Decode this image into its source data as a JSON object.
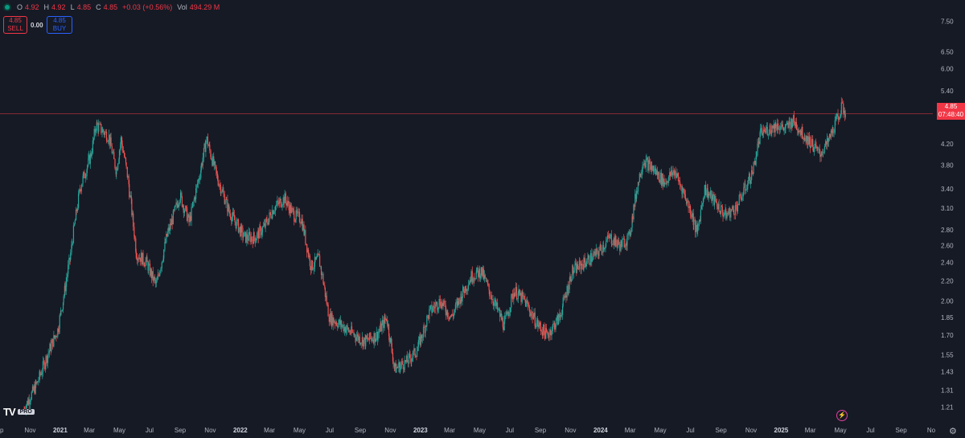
{
  "legend": {
    "open_label": "O",
    "open": "4.92",
    "high_label": "H",
    "high": "4.92",
    "low_label": "L",
    "low": "4.85",
    "close_label": "C",
    "close": "4.85",
    "change": "+0.03 (+0.56%)",
    "vol_label": "Vol",
    "volume": "494.29 M"
  },
  "trade": {
    "sell_price": "4.85",
    "sell_label": "SELL",
    "spread": "0.00",
    "buy_price": "4.85",
    "buy_label": "BUY"
  },
  "price_tag": {
    "price": "4.85",
    "countdown": "07:48:40"
  },
  "logo": {
    "badge": "PRO",
    "mark": "TV"
  },
  "colors": {
    "background": "#161a25",
    "up": "#26a69a",
    "down": "#ef5350",
    "last_price": "#f23645",
    "grid": "#1e222d"
  },
  "icons": [
    "status-dot-icon",
    "tradingview-logo-icon",
    "lightning-icon",
    "settings-gear-icon"
  ],
  "chart_data": {
    "type": "candlestick",
    "y_scale": "log",
    "ylim": [
      1.15,
      8.3
    ],
    "y_ticks": [
      "7.50",
      "6.50",
      "6.00",
      "5.40",
      "5.00",
      "4.20",
      "3.80",
      "3.40",
      "3.10",
      "2.80",
      "2.60",
      "2.40",
      "2.20",
      "2.00",
      "1.85",
      "1.70",
      "1.55",
      "1.43",
      "1.31",
      "1.21"
    ],
    "x_range": [
      "2020-09",
      "2025-11"
    ],
    "x_ticks": [
      {
        "label": "ep",
        "date": "2020-09"
      },
      {
        "label": "Nov",
        "date": "2020-11"
      },
      {
        "label": "2021",
        "date": "2021-01"
      },
      {
        "label": "Mar",
        "date": "2021-03"
      },
      {
        "label": "May",
        "date": "2021-05"
      },
      {
        "label": "Jul",
        "date": "2021-07"
      },
      {
        "label": "Sep",
        "date": "2021-09"
      },
      {
        "label": "Nov",
        "date": "2021-11"
      },
      {
        "label": "2022",
        "date": "2022-01"
      },
      {
        "label": "Mar",
        "date": "2022-03"
      },
      {
        "label": "May",
        "date": "2022-05"
      },
      {
        "label": "Jul",
        "date": "2022-07"
      },
      {
        "label": "Sep",
        "date": "2022-09"
      },
      {
        "label": "Nov",
        "date": "2022-11"
      },
      {
        "label": "2023",
        "date": "2023-01"
      },
      {
        "label": "Mar",
        "date": "2023-03"
      },
      {
        "label": "May",
        "date": "2023-05"
      },
      {
        "label": "Jul",
        "date": "2023-07"
      },
      {
        "label": "Sep",
        "date": "2023-09"
      },
      {
        "label": "Nov",
        "date": "2023-11"
      },
      {
        "label": "2024",
        "date": "2024-01"
      },
      {
        "label": "Mar",
        "date": "2024-03"
      },
      {
        "label": "May",
        "date": "2024-05"
      },
      {
        "label": "Jul",
        "date": "2024-07"
      },
      {
        "label": "Sep",
        "date": "2024-09"
      },
      {
        "label": "Nov",
        "date": "2024-11"
      },
      {
        "label": "2025",
        "date": "2025-01"
      },
      {
        "label": "Mar",
        "date": "2025-03"
      },
      {
        "label": "May",
        "date": "2025-05"
      },
      {
        "label": "Jul",
        "date": "2025-07"
      },
      {
        "label": "Sep",
        "date": "2025-09"
      },
      {
        "label": "No",
        "date": "2025-11"
      }
    ],
    "last_price": 4.85,
    "price_path": [
      [
        "2020-10-20",
        1.2
      ],
      [
        "2020-11-15",
        1.35
      ],
      [
        "2020-12-10",
        1.58
      ],
      [
        "2020-12-28",
        1.75
      ],
      [
        "2021-01-20",
        2.4
      ],
      [
        "2021-02-10",
        3.4
      ],
      [
        "2021-03-05",
        4.0
      ],
      [
        "2021-03-15",
        4.6
      ],
      [
        "2021-04-10",
        4.35
      ],
      [
        "2021-04-25",
        3.7
      ],
      [
        "2021-05-05",
        4.3
      ],
      [
        "2021-05-20",
        3.5
      ],
      [
        "2021-06-05",
        2.5
      ],
      [
        "2021-06-25",
        2.4
      ],
      [
        "2021-07-15",
        2.15
      ],
      [
        "2021-08-05",
        2.7
      ],
      [
        "2021-09-01",
        3.3
      ],
      [
        "2021-09-20",
        2.9
      ],
      [
        "2021-10-10",
        3.6
      ],
      [
        "2021-10-25",
        4.3
      ],
      [
        "2021-11-15",
        3.6
      ],
      [
        "2021-12-10",
        3.05
      ],
      [
        "2022-01-10",
        2.7
      ],
      [
        "2022-02-01",
        2.7
      ],
      [
        "2022-02-20",
        2.85
      ],
      [
        "2022-03-10",
        3.1
      ],
      [
        "2022-04-01",
        3.25
      ],
      [
        "2022-04-20",
        3.0
      ],
      [
        "2022-05-05",
        2.95
      ],
      [
        "2022-05-25",
        2.35
      ],
      [
        "2022-06-10",
        2.45
      ],
      [
        "2022-07-01",
        1.85
      ],
      [
        "2022-07-20",
        1.8
      ],
      [
        "2022-08-15",
        1.72
      ],
      [
        "2022-09-10",
        1.65
      ],
      [
        "2022-10-05",
        1.7
      ],
      [
        "2022-10-25",
        1.85
      ],
      [
        "2022-11-10",
        1.45
      ],
      [
        "2022-12-05",
        1.5
      ],
      [
        "2022-12-25",
        1.58
      ],
      [
        "2023-01-20",
        1.9
      ],
      [
        "2023-02-10",
        2.0
      ],
      [
        "2023-03-05",
        1.85
      ],
      [
        "2023-03-25",
        2.05
      ],
      [
        "2023-04-15",
        2.25
      ],
      [
        "2023-05-05",
        2.3
      ],
      [
        "2023-05-25",
        2.05
      ],
      [
        "2023-06-20",
        1.78
      ],
      [
        "2023-07-10",
        2.1
      ],
      [
        "2023-08-01",
        2.0
      ],
      [
        "2023-08-25",
        1.8
      ],
      [
        "2023-09-15",
        1.7
      ],
      [
        "2023-10-10",
        1.85
      ],
      [
        "2023-11-05",
        2.3
      ],
      [
        "2023-12-01",
        2.4
      ],
      [
        "2023-12-25",
        2.5
      ],
      [
        "2024-01-20",
        2.7
      ],
      [
        "2024-02-10",
        2.6
      ],
      [
        "2024-02-28",
        2.7
      ],
      [
        "2024-03-15",
        3.4
      ],
      [
        "2024-03-28",
        3.9
      ],
      [
        "2024-04-20",
        3.7
      ],
      [
        "2024-05-10",
        3.5
      ],
      [
        "2024-05-30",
        3.7
      ],
      [
        "2024-06-20",
        3.3
      ],
      [
        "2024-07-05",
        3.0
      ],
      [
        "2024-07-15",
        2.75
      ],
      [
        "2024-07-30",
        3.4
      ],
      [
        "2024-08-20",
        3.2
      ],
      [
        "2024-09-10",
        3.0
      ],
      [
        "2024-10-01",
        3.1
      ],
      [
        "2024-10-20",
        3.4
      ],
      [
        "2024-11-05",
        3.7
      ],
      [
        "2024-11-20",
        4.4
      ],
      [
        "2024-12-05",
        4.5
      ],
      [
        "2024-12-25",
        4.6
      ],
      [
        "2025-01-10",
        4.5
      ],
      [
        "2025-01-25",
        4.7
      ],
      [
        "2025-02-15",
        4.4
      ],
      [
        "2025-03-05",
        4.2
      ],
      [
        "2025-03-20",
        4.0
      ],
      [
        "2025-04-05",
        4.2
      ],
      [
        "2025-04-20",
        4.6
      ],
      [
        "2025-05-05",
        5.0
      ],
      [
        "2025-05-12",
        4.85
      ]
    ]
  }
}
